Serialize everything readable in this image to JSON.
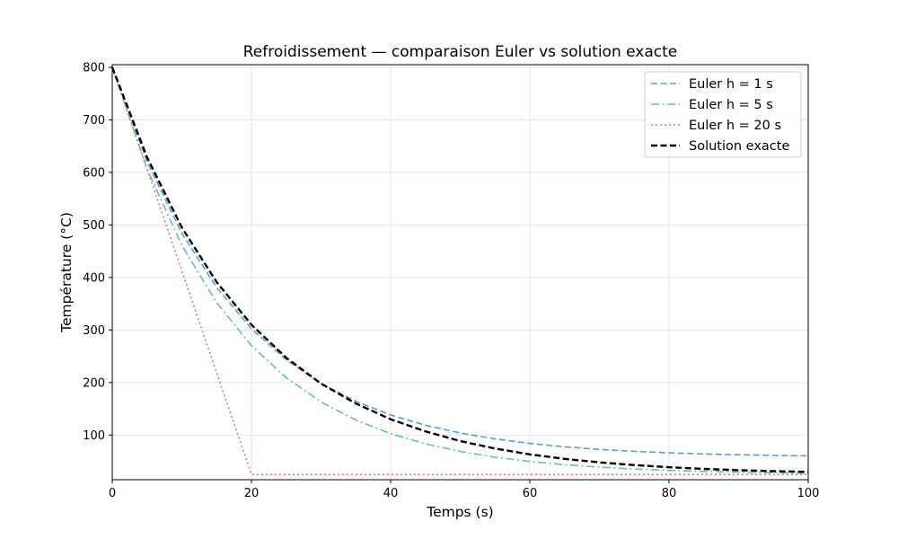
{
  "chart_data": {
    "type": "line",
    "title": "Refroidissement — comparaison Euler vs solution exacte",
    "xlabel": "Temps (s)",
    "ylabel": "Température (°C)",
    "xlim": [
      0,
      100
    ],
    "ylim": [
      15,
      805
    ],
    "xticks": [
      0,
      20,
      40,
      60,
      80,
      100
    ],
    "yticks": [
      100,
      200,
      300,
      400,
      500,
      600,
      700,
      800
    ],
    "grid": true,
    "legend_position": "top-right",
    "series": [
      {
        "name": "Euler h = 1 s",
        "color": "#5b9bd5",
        "style": "dashed",
        "x": [
          0,
          5,
          10,
          15,
          20,
          25,
          30,
          35,
          40,
          45,
          50,
          55,
          60,
          65,
          70,
          75,
          80,
          85,
          90,
          95,
          100
        ],
        "y": [
          800,
          620.3,
          484.1,
          380.8,
          302.5,
          243.2,
          198.2,
          164.1,
          138.3,
          118.7,
          103.9,
          92.6,
          84.1,
          77.6,
          72.7,
          69,
          66.2,
          64.1,
          62.5,
          61.2,
          60.3
        ]
      },
      {
        "name": "Euler h = 5 s",
        "color": "#66c592",
        "style": "dashdot",
        "x": [
          0,
          5,
          10,
          15,
          20,
          25,
          30,
          35,
          40,
          45,
          50,
          55,
          60,
          65,
          70,
          75,
          80,
          85,
          90,
          95,
          100
        ],
        "y": [
          800,
          606.3,
          461,
          352,
          270.3,
          209,
          163,
          128.6,
          102.7,
          83.3,
          68.8,
          57.9,
          49.7,
          43.5,
          38.9,
          35.4,
          32.8,
          30.9,
          29.4,
          28.3,
          27.5
        ]
      },
      {
        "name": "Euler h = 20 s",
        "color": "#e07a7a",
        "style": "dotted",
        "x": [
          0,
          20,
          40,
          60,
          80,
          100
        ],
        "y": [
          800,
          25,
          25,
          25,
          25,
          25
        ]
      },
      {
        "name": "Solution exacte",
        "color": "#000000",
        "style": "dashed",
        "x": [
          0,
          5,
          10,
          15,
          20,
          25,
          30,
          35,
          40,
          45,
          50,
          55,
          60,
          65,
          70,
          75,
          80,
          85,
          90,
          95,
          100
        ],
        "y": [
          800,
          628.5,
          495,
          391,
          310,
          247,
          198,
          160,
          130,
          107,
          88.5,
          74.3,
          63.3,
          54.7,
          48,
          42.8,
          38.7,
          35.6,
          33.1,
          31.2,
          29.8
        ]
      }
    ]
  }
}
